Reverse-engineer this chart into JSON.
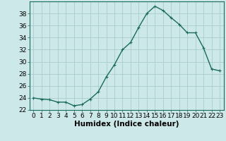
{
  "x": [
    0,
    1,
    2,
    3,
    4,
    5,
    6,
    7,
    8,
    9,
    10,
    11,
    12,
    13,
    14,
    15,
    16,
    17,
    18,
    19,
    20,
    21,
    22,
    23
  ],
  "y": [
    24.0,
    23.8,
    23.7,
    23.3,
    23.3,
    22.7,
    22.9,
    23.8,
    25.0,
    27.5,
    29.5,
    32.0,
    33.2,
    35.7,
    38.0,
    39.2,
    38.5,
    37.3,
    36.2,
    34.8,
    34.8,
    32.3,
    28.8,
    28.5
  ],
  "bg_color": "#cce8e8",
  "grid_color": "#aacccc",
  "line_color": "#1a6b5a",
  "marker_color": "#1a6b5a",
  "xlabel": "Humidex (Indice chaleur)",
  "ylim": [
    22,
    40
  ],
  "yticks": [
    22,
    24,
    26,
    28,
    30,
    32,
    34,
    36,
    38
  ],
  "xticks": [
    0,
    1,
    2,
    3,
    4,
    5,
    6,
    7,
    8,
    9,
    10,
    11,
    12,
    13,
    14,
    15,
    16,
    17,
    18,
    19,
    20,
    21,
    22,
    23
  ],
  "xlabel_fontsize": 7.5,
  "tick_fontsize": 6.5,
  "line_width": 1.0,
  "marker_size": 2.5
}
